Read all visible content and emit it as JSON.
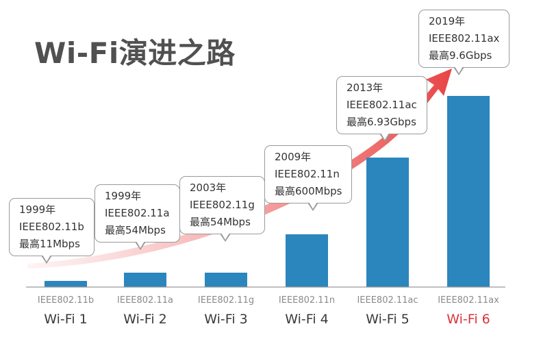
{
  "title": "Wi-Fi演进之路",
  "colors": {
    "bar": "#2b86bd",
    "highlight": "#d9323a",
    "arrow": "#e84a4a",
    "axis": "#9a9a9a"
  },
  "chart_data": {
    "type": "bar",
    "categories": [
      "Wi-Fi 1",
      "Wi-Fi 2",
      "Wi-Fi 3",
      "Wi-Fi 4",
      "Wi-Fi 5",
      "Wi-Fi 6"
    ],
    "standards": [
      "IEEE802.11b",
      "IEEE802.11a",
      "IEEE802.11g",
      "IEEE802.11n",
      "IEEE802.11ac",
      "IEEE802.11ax"
    ],
    "values": [
      11,
      54,
      54,
      600,
      6930,
      9600
    ],
    "value_unit": "Mbps",
    "highlight_index": 5,
    "callouts": [
      {
        "year": "1999年",
        "standard": "IEEE802.11b",
        "speed": "最高11Mbps"
      },
      {
        "year": "1999年",
        "standard": "IEEE802.11a",
        "speed": "最高54Mbps"
      },
      {
        "year": "2003年",
        "standard": "IEEE802.11g",
        "speed": "最高54Mbps"
      },
      {
        "year": "2009年",
        "standard": "IEEE802.11n",
        "speed": "最高600Mbps"
      },
      {
        "year": "2013年",
        "standard": "IEEE802.11ac",
        "speed": "最高6.93Gbps"
      },
      {
        "year": "2019年",
        "standard": "IEEE802.11ax",
        "speed": "最高9.6Gbps"
      }
    ]
  }
}
